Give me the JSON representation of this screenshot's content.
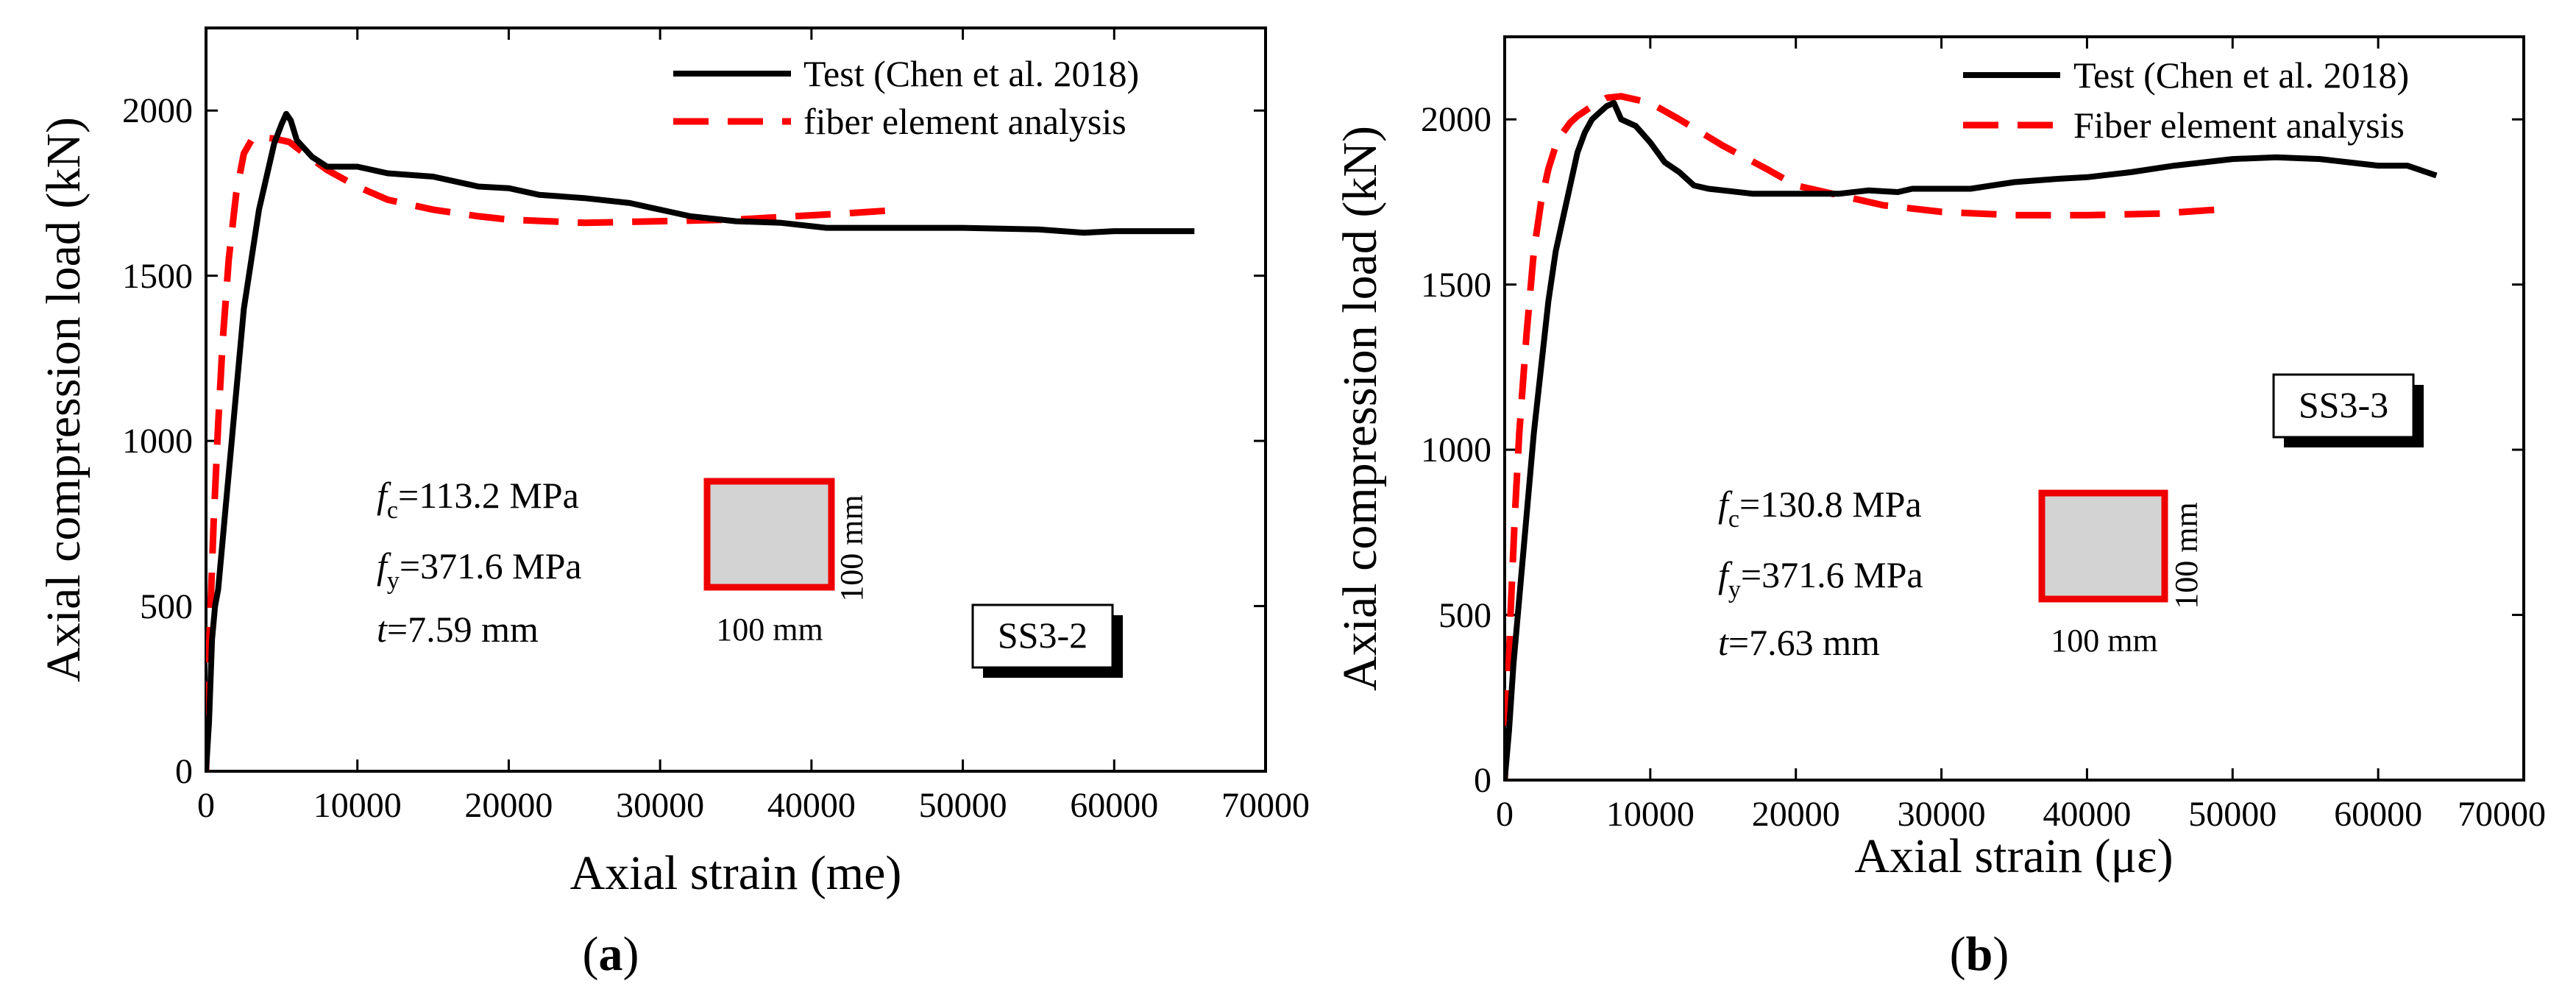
{
  "chart_data": [
    {
      "type": "line",
      "panel": "a",
      "caption_label": "a",
      "xlabel": "Axial strain (me)",
      "ylabel": "Axial compression load (kN)",
      "xlim": [
        0,
        70000
      ],
      "ylim": [
        0,
        2250
      ],
      "xticks": [
        0,
        10000,
        20000,
        30000,
        40000,
        50000,
        60000,
        70000
      ],
      "xtick_labels": [
        "0",
        "10000",
        "20000",
        "30000",
        "40000",
        "50000",
        "60000",
        "70000"
      ],
      "yticks": [
        0,
        500,
        1000,
        1500,
        2000
      ],
      "ytick_labels": [
        "0",
        "500",
        "1000",
        "1500",
        "2000"
      ],
      "legend_position": "top-right",
      "specimen_label": "SS3-2",
      "annotations": {
        "fc_symbol": "f",
        "fc_subscript": "c",
        "fc_value": "=113.2 MPa",
        "fy_symbol": "f",
        "fy_subscript": "y",
        "fy_value": "=371.6 MPa",
        "t_symbol": "t",
        "t_value": "=7.59 mm",
        "section_width": "100 mm",
        "section_height": "100 mm"
      },
      "series": [
        {
          "name": "Test (Chen et al. 2018)",
          "color": "#000000",
          "dash": "solid",
          "x": [
            0,
            200,
            400,
            600,
            800,
            1000,
            1300,
            1600,
            2000,
            2500,
            3000,
            3500,
            4000,
            4500,
            5000,
            5300,
            5600,
            6000,
            7000,
            8000,
            10000,
            12000,
            15000,
            18000,
            20000,
            22000,
            25000,
            28000,
            30000,
            32000,
            35000,
            38000,
            41000,
            45000,
            50000,
            55000,
            58000,
            60000,
            63000,
            65300
          ],
          "y": [
            0,
            150,
            400,
            500,
            550,
            650,
            800,
            950,
            1150,
            1400,
            1550,
            1700,
            1800,
            1900,
            1960,
            1990,
            1970,
            1910,
            1860,
            1830,
            1830,
            1810,
            1800,
            1770,
            1765,
            1745,
            1735,
            1720,
            1700,
            1680,
            1665,
            1660,
            1645,
            1645,
            1645,
            1640,
            1630,
            1635,
            1635,
            1635
          ]
        },
        {
          "name": "fiber element analysis",
          "color": "#ff0000",
          "dash": "dashed",
          "x": [
            0,
            150,
            300,
            500,
            800,
            1100,
            1500,
            2000,
            2500,
            3000,
            3500,
            4500,
            5500,
            6500,
            8000,
            10000,
            12000,
            15000,
            18000,
            20000,
            25000,
            30000,
            35000,
            38000,
            42000,
            46000
          ],
          "y": [
            0,
            300,
            500,
            750,
            1050,
            1300,
            1550,
            1750,
            1870,
            1910,
            1920,
            1915,
            1905,
            1870,
            1820,
            1770,
            1730,
            1700,
            1680,
            1670,
            1660,
            1665,
            1670,
            1678,
            1688,
            1700
          ]
        }
      ]
    },
    {
      "type": "line",
      "panel": "b",
      "caption_label": "b",
      "xlabel": "Axial strain (με)",
      "ylabel": "Axial compression load (kN)",
      "xlim": [
        0,
        70000
      ],
      "ylim": [
        0,
        2250
      ],
      "xticks": [
        0,
        10000,
        20000,
        30000,
        40000,
        50000,
        60000,
        70000
      ],
      "xtick_labels": [
        "0",
        "10000",
        "20000",
        "30000",
        "40000",
        "50000",
        "60000",
        "70000"
      ],
      "yticks": [
        0,
        500,
        1000,
        1500,
        2000
      ],
      "ytick_labels": [
        "0",
        "500",
        "1000",
        "1500",
        "2000"
      ],
      "legend_position": "top-right",
      "specimen_label": "SS3-3",
      "annotations": {
        "fc_symbol": "f",
        "fc_subscript": "c",
        "fc_value": "=130.8 MPa",
        "fy_symbol": "f",
        "fy_subscript": "y",
        "fy_value": "=371.6 MPa",
        "t_symbol": "t",
        "t_value": "=7.63 mm",
        "section_width": "100 mm",
        "section_height": "100 mm"
      },
      "series": [
        {
          "name": "Test (Chen et al. 2018)",
          "color": "#000000",
          "dash": "solid",
          "x": [
            0,
            300,
            600,
            1000,
            1500,
            2000,
            2500,
            3000,
            3500,
            4000,
            4500,
            5000,
            5500,
            6000,
            6500,
            7000,
            7500,
            8000,
            9000,
            10000,
            11000,
            12000,
            13000,
            14000,
            15000,
            17000,
            20000,
            23000,
            25000,
            27000,
            28000,
            30000,
            32000,
            35000,
            38000,
            40000,
            43000,
            46000,
            50000,
            53000,
            56000,
            58000,
            60000,
            62000,
            64000
          ],
          "y": [
            0,
            150,
            350,
            550,
            800,
            1050,
            1250,
            1450,
            1600,
            1700,
            1800,
            1900,
            1960,
            2000,
            2020,
            2040,
            2050,
            2000,
            1980,
            1930,
            1870,
            1840,
            1800,
            1790,
            1785,
            1775,
            1775,
            1775,
            1785,
            1780,
            1790,
            1790,
            1790,
            1810,
            1820,
            1825,
            1840,
            1860,
            1880,
            1885,
            1880,
            1870,
            1860,
            1860,
            1830
          ]
        },
        {
          "name": "Fiber element analysis",
          "color": "#ff0000",
          "dash": "dashed",
          "x": [
            0,
            200,
            400,
            700,
            1000,
            1500,
            2000,
            2500,
            3000,
            3500,
            4000,
            4500,
            5000,
            5500,
            6000,
            7000,
            8000,
            9000,
            10000,
            12000,
            15000,
            18000,
            20000,
            23000,
            26000,
            30000,
            35000,
            40000,
            45000,
            50000
          ],
          "y": [
            0,
            250,
            500,
            800,
            1050,
            1350,
            1600,
            1750,
            1850,
            1920,
            1960,
            1990,
            2010,
            2025,
            2040,
            2065,
            2070,
            2060,
            2050,
            2000,
            1920,
            1850,
            1800,
            1770,
            1740,
            1720,
            1710,
            1710,
            1715,
            1730
          ]
        }
      ]
    }
  ]
}
